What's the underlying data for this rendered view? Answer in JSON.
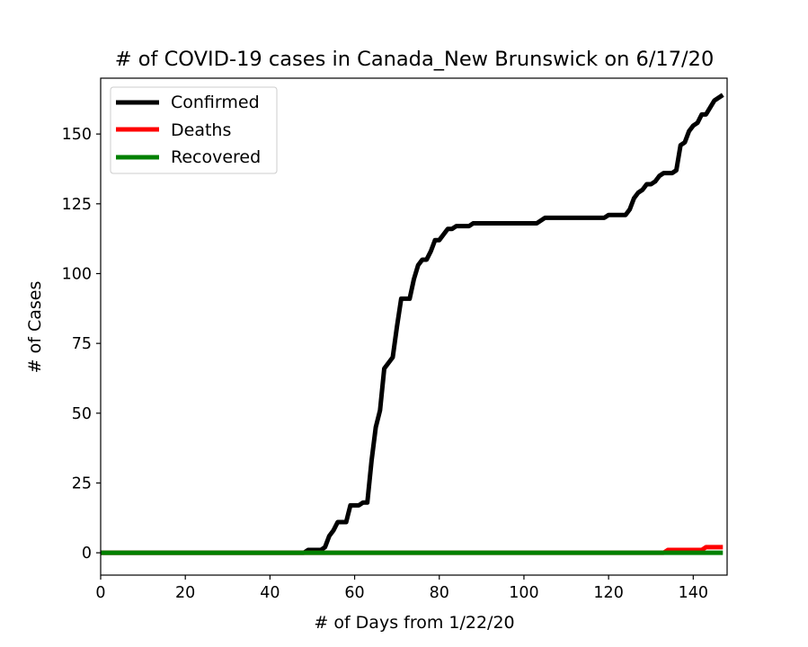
{
  "chart_data": {
    "type": "line",
    "title": "# of COVID-19 cases in Canada_New Brunswick on 6/17/20",
    "xlabel": "# of Days from 1/22/20",
    "ylabel": "# of Cases",
    "xlim": [
      0,
      148
    ],
    "ylim": [
      -8,
      170
    ],
    "xticks": [
      0,
      20,
      40,
      60,
      80,
      100,
      120,
      140
    ],
    "yticks": [
      0,
      25,
      50,
      75,
      100,
      125,
      150
    ],
    "grid": false,
    "legend_position": "upper-left",
    "series": [
      {
        "name": "Confirmed",
        "color": "#000000",
        "points": [
          [
            0,
            0
          ],
          [
            48,
            0
          ],
          [
            49,
            1
          ],
          [
            52,
            1
          ],
          [
            53,
            2
          ],
          [
            54,
            6
          ],
          [
            55,
            8
          ],
          [
            56,
            11
          ],
          [
            58,
            11
          ],
          [
            59,
            17
          ],
          [
            61,
            17
          ],
          [
            62,
            18
          ],
          [
            63,
            18
          ],
          [
            64,
            33
          ],
          [
            65,
            45
          ],
          [
            66,
            51
          ],
          [
            67,
            66
          ],
          [
            69,
            70
          ],
          [
            70,
            81
          ],
          [
            71,
            91
          ],
          [
            73,
            91
          ],
          [
            74,
            98
          ],
          [
            75,
            103
          ],
          [
            76,
            105
          ],
          [
            77,
            105
          ],
          [
            78,
            108
          ],
          [
            79,
            112
          ],
          [
            80,
            112
          ],
          [
            82,
            116
          ],
          [
            83,
            116
          ],
          [
            84,
            117
          ],
          [
            87,
            117
          ],
          [
            88,
            118
          ],
          [
            103,
            118
          ],
          [
            105,
            120
          ],
          [
            119,
            120
          ],
          [
            120,
            121
          ],
          [
            124,
            121
          ],
          [
            125,
            123
          ],
          [
            126,
            127
          ],
          [
            127,
            129
          ],
          [
            128,
            130
          ],
          [
            129,
            132
          ],
          [
            130,
            132
          ],
          [
            131,
            133
          ],
          [
            132,
            135
          ],
          [
            133,
            136
          ],
          [
            135,
            136
          ],
          [
            136,
            137
          ],
          [
            137,
            146
          ],
          [
            138,
            147
          ],
          [
            139,
            151
          ],
          [
            140,
            153
          ],
          [
            141,
            154
          ],
          [
            142,
            157
          ],
          [
            143,
            157
          ],
          [
            145,
            162
          ],
          [
            146,
            163
          ],
          [
            147,
            164
          ]
        ]
      },
      {
        "name": "Deaths",
        "color": "#ff0000",
        "points": [
          [
            0,
            0
          ],
          [
            133,
            0
          ],
          [
            134,
            1
          ],
          [
            142,
            1
          ],
          [
            143,
            2
          ],
          [
            147,
            2
          ]
        ]
      },
      {
        "name": "Recovered",
        "color": "#008000",
        "points": [
          [
            0,
            0
          ],
          [
            147,
            0
          ]
        ]
      }
    ]
  }
}
